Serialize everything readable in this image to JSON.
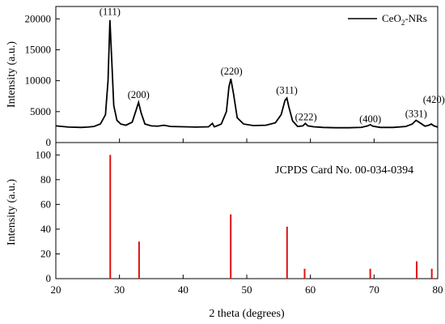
{
  "chart_data": [
    {
      "type": "line",
      "ylabel": "Intensity (a.u.)",
      "xlim": [
        20,
        80
      ],
      "ylim": [
        0,
        22000
      ],
      "yticks": [
        "0",
        "5000",
        "10000",
        "15000",
        "20000"
      ],
      "series": [
        {
          "name": "CeO2-NRs",
          "color": "#000000",
          "x": [
            20,
            22,
            24,
            25,
            26,
            27,
            27.8,
            28.2,
            28.5,
            28.8,
            29.1,
            29.6,
            30.2,
            31,
            32,
            32.6,
            33.0,
            33.4,
            34,
            35,
            36,
            37,
            38,
            40,
            42,
            44,
            44.6,
            44.9,
            45.2,
            46,
            46.8,
            47.2,
            47.5,
            47.9,
            48.5,
            49.5,
            51,
            53,
            54.5,
            55.4,
            56.0,
            56.3,
            56.6,
            57.2,
            58,
            58.8,
            59.2,
            59.6,
            60.5,
            62,
            64,
            66,
            68,
            69.0,
            69.4,
            69.8,
            71,
            73,
            75,
            76.0,
            76.6,
            77.2,
            78,
            78.6,
            79.0,
            79.4,
            80
          ],
          "y": [
            2700,
            2500,
            2450,
            2500,
            2600,
            3000,
            4500,
            10000,
            19800,
            13000,
            6000,
            3600,
            3000,
            2800,
            3300,
            5200,
            6500,
            4800,
            3000,
            2700,
            2650,
            2800,
            2600,
            2550,
            2500,
            2550,
            3100,
            2550,
            2650,
            3000,
            5000,
            9000,
            10300,
            8000,
            4000,
            3000,
            2750,
            2800,
            3200,
            4500,
            6800,
            7200,
            5800,
            3500,
            2600,
            2700,
            3100,
            2700,
            2550,
            2450,
            2400,
            2400,
            2450,
            2700,
            2900,
            2650,
            2450,
            2450,
            2600,
            3000,
            3600,
            3200,
            2650,
            2800,
            3000,
            2700,
            2500
          ]
        }
      ],
      "peak_labels": [
        {
          "text": "(111)",
          "x": 28.5,
          "y": 20600
        },
        {
          "text": "(200)",
          "x": 33.0,
          "y": 7200
        },
        {
          "text": "(220)",
          "x": 47.6,
          "y": 11000
        },
        {
          "text": "(311)",
          "x": 56.3,
          "y": 7900
        },
        {
          "text": "(222)",
          "x": 59.3,
          "y": 3600
        },
        {
          "text": "(400)",
          "x": 69.4,
          "y": 3300
        },
        {
          "text": "(331)",
          "x": 76.6,
          "y": 4100
        },
        {
          "text": "(420)",
          "x": 79.4,
          "y": 6400
        }
      ]
    },
    {
      "type": "bar",
      "title": "JCPDS Card No. 00-034-0394",
      "xlabel": "2 theta (degrees)",
      "ylabel": "Intensity (a.u.)",
      "xlim": [
        20,
        80
      ],
      "ylim": [
        0,
        110
      ],
      "xticks": [
        "20",
        "30",
        "40",
        "50",
        "60",
        "70",
        "80"
      ],
      "yticks": [
        "0",
        "20",
        "40",
        "60",
        "80",
        "100"
      ],
      "color": "#e01010",
      "x": [
        28.55,
        33.08,
        47.48,
        56.33,
        59.09,
        69.4,
        76.7,
        79.07
      ],
      "values": [
        100,
        30,
        52,
        42,
        8,
        8,
        14,
        8
      ]
    }
  ]
}
